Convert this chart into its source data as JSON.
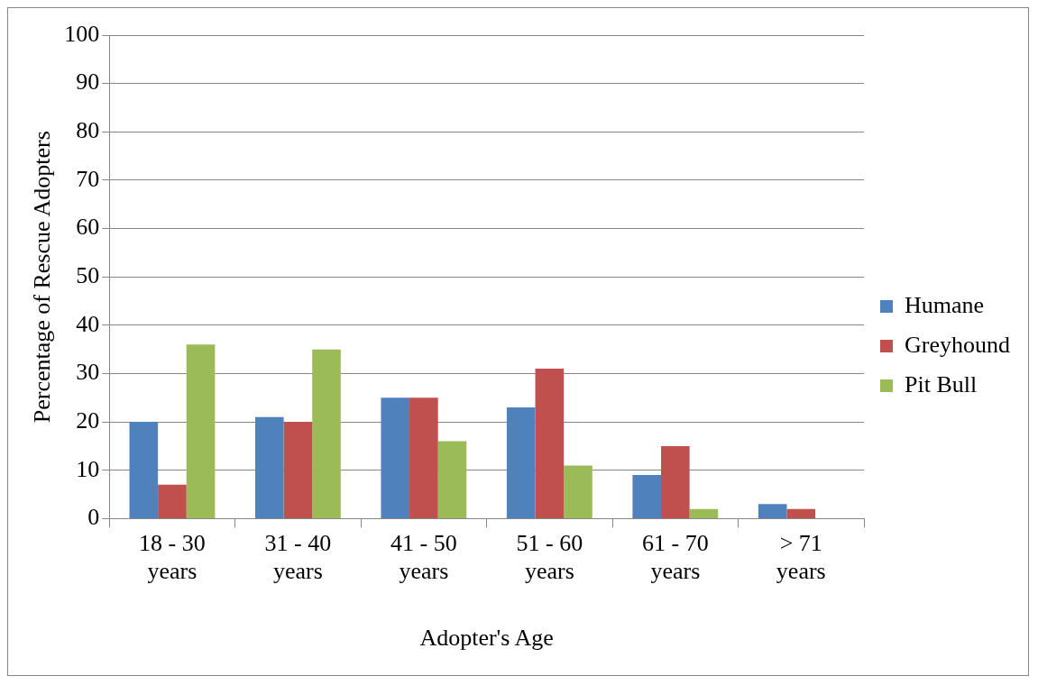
{
  "chart_data": {
    "type": "bar",
    "xlabel": "Adopter's Age",
    "ylabel": "Percentage of Rescue Adopters",
    "categories": [
      "18 - 30 years",
      "31 - 40 years",
      "41 - 50 years",
      "51 - 60 years",
      "61 - 70 years",
      "> 71 years"
    ],
    "series": [
      {
        "name": "Humane",
        "color": "#4f81bd",
        "values": [
          20,
          21,
          25,
          23,
          9,
          3
        ]
      },
      {
        "name": "Greyhound",
        "color": "#c0504d",
        "values": [
          7,
          20,
          25,
          31,
          15,
          2
        ]
      },
      {
        "name": "Pit Bull",
        "color": "#9bbb59",
        "values": [
          36,
          35,
          16,
          11,
          2,
          0
        ]
      }
    ],
    "ylim": [
      0,
      100
    ],
    "yticks": [
      0,
      10,
      20,
      30,
      40,
      50,
      60,
      70,
      80,
      90,
      100
    ],
    "grid": "y",
    "legend": "right"
  }
}
